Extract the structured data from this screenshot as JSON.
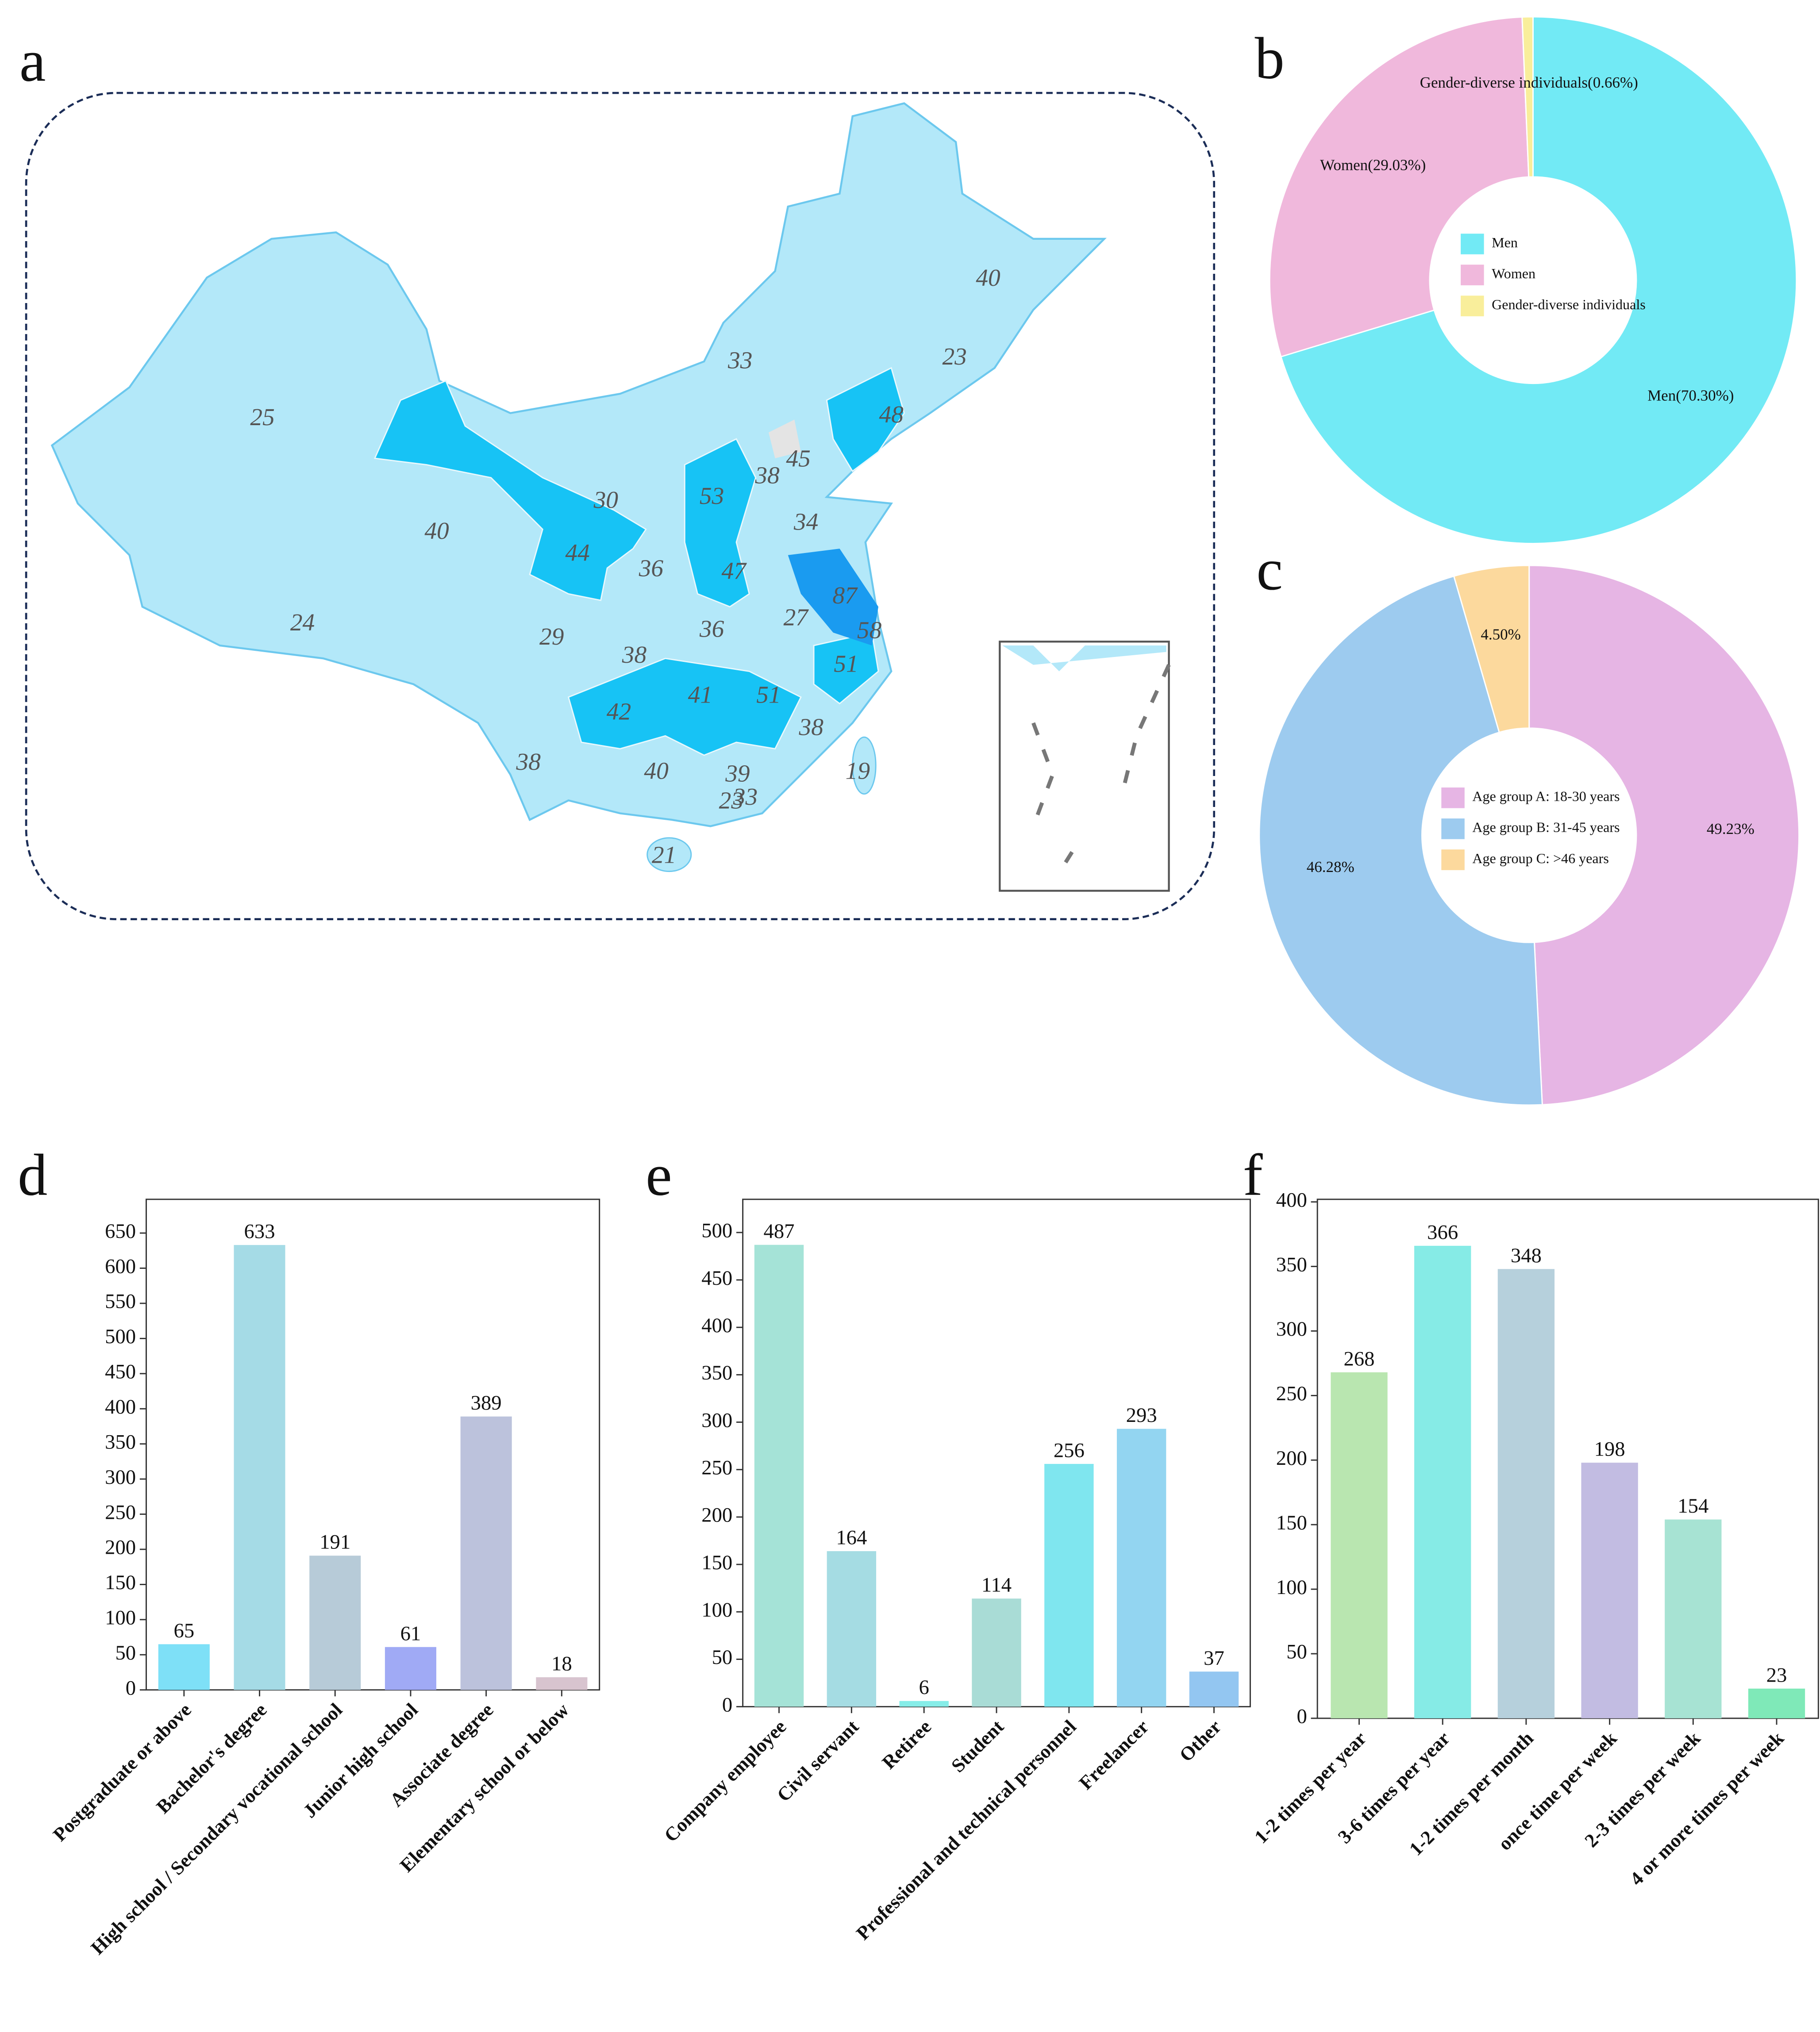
{
  "panel_labels": [
    "a",
    "b",
    "c",
    "d",
    "e",
    "f"
  ],
  "map": {
    "labels": [
      25,
      40,
      24,
      30,
      44,
      36,
      53,
      38,
      45,
      34,
      47,
      87,
      58,
      27,
      36,
      29,
      38,
      42,
      41,
      51,
      51,
      38,
      40,
      39,
      23,
      33,
      19,
      21,
      38,
      33,
      23,
      40,
      48
    ]
  },
  "chart_data": [
    {
      "type": "pie",
      "categories": [
        "Men",
        "Women",
        "Gender-diverse individuals"
      ],
      "values": [
        70.3,
        29.03,
        0.66
      ],
      "value_labels": [
        "Men(70.30%)",
        "Women(29.03%)",
        "Gender-diverse individuals(0.66%)"
      ],
      "colors": [
        "#72eaf5",
        "#f0b8dc",
        "#f9ee9b"
      ]
    },
    {
      "type": "pie",
      "categories": [
        "Age group A: 18-30 years",
        "Age group B: 31-45 years",
        "Age group C: >46 years"
      ],
      "values": [
        49.23,
        46.28,
        4.5
      ],
      "value_labels": [
        "49.23%",
        "46.28%",
        "4.50%"
      ],
      "colors": [
        "#e6b5e4",
        "#9dcbef",
        "#fcd99d"
      ]
    },
    {
      "type": "bar",
      "categories": [
        "Postgraduate or above",
        "Bachelor's degree",
        "High school / Secondary vocational school",
        "Junior high school",
        "Associate degree",
        "Elementary school or below"
      ],
      "values": [
        65,
        633,
        191,
        61,
        389,
        18
      ],
      "colors": [
        "#7ee0f7",
        "#a5dbe6",
        "#b7cbd8",
        "#a0aaf5",
        "#bcc2dc",
        "#d8c4cf"
      ],
      "ylim": [
        0,
        698
      ],
      "yticks": [
        0,
        50,
        100,
        150,
        200,
        250,
        300,
        350,
        400,
        450,
        500,
        550,
        600,
        650
      ]
    },
    {
      "type": "bar",
      "categories": [
        "Company employee",
        "Civil servant",
        "Retiree",
        "Student",
        "Professional and technical personnel",
        "Freelancer",
        "Other"
      ],
      "values": [
        487,
        164,
        6,
        114,
        256,
        293,
        37
      ],
      "colors": [
        "#a5e3d7",
        "#a5dce3",
        "#86ede8",
        "#a9dcd6",
        "#7fe6ef",
        "#93d5f1",
        "#93c6f1"
      ],
      "ylim": [
        0,
        535
      ],
      "yticks": [
        0,
        50,
        100,
        150,
        200,
        250,
        300,
        350,
        400,
        450,
        500
      ]
    },
    {
      "type": "bar",
      "categories": [
        "1-2 times per year",
        "3-6 times per year",
        "1-2 times per month",
        "once time per week",
        "2-3 times per week",
        "4 or more times per week"
      ],
      "values": [
        268,
        366,
        348,
        198,
        154,
        23
      ],
      "colors": [
        "#b9e6b0",
        "#86ebe6",
        "#b6d0dc",
        "#c2bce2",
        "#a7e3d3",
        "#7fe9b8"
      ],
      "ylim": [
        0,
        402
      ],
      "yticks": [
        0,
        50,
        100,
        150,
        200,
        250,
        300,
        350,
        400
      ]
    }
  ]
}
